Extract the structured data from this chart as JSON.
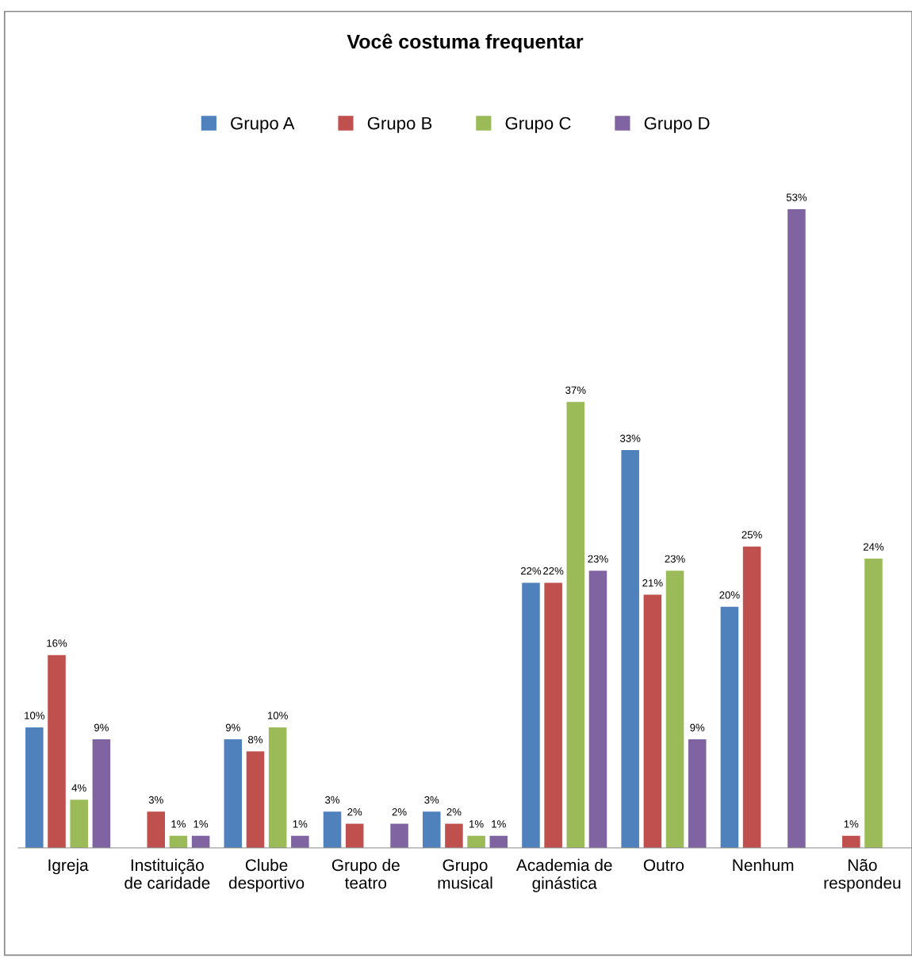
{
  "chart_data": {
    "type": "bar",
    "title": "Você costuma frequentar",
    "categories": [
      "Igreja",
      "Instituição de caridade",
      "Clube desportivo",
      "Grupo de teatro",
      "Grupo musical",
      "Academia de ginástica",
      "Outro",
      "Nenhum",
      "Não respondeu"
    ],
    "series": [
      {
        "name": "Grupo A",
        "color": "#4f81bd",
        "values": [
          10,
          null,
          9,
          3,
          3,
          22,
          33,
          20,
          null
        ],
        "value_labels": [
          "10%",
          null,
          "9%",
          "3%",
          "3%",
          "22%",
          "33%",
          "20%",
          null
        ]
      },
      {
        "name": "Grupo B",
        "color": "#c0504d",
        "values": [
          16,
          3,
          8,
          2,
          2,
          22,
          21,
          25,
          1
        ],
        "value_labels": [
          "16%",
          "3%",
          "8%",
          "2%",
          "2%",
          "22%",
          "21%",
          "25%",
          "1%"
        ]
      },
      {
        "name": "Grupo C",
        "color": "#9bbb59",
        "values": [
          4,
          1,
          10,
          null,
          1,
          37,
          23,
          null,
          24
        ],
        "value_labels": [
          "4%",
          "1%",
          "10%",
          null,
          "1%",
          "37%",
          "23%",
          null,
          "24%"
        ]
      },
      {
        "name": "Grupo D",
        "color": "#8064a2",
        "values": [
          9,
          1,
          1,
          2,
          1,
          23,
          9,
          53,
          null
        ],
        "value_labels": [
          "9%",
          "1%",
          "1%",
          "2%",
          "1%",
          "23%",
          "9%",
          "53%",
          null
        ]
      }
    ],
    "legend": "top",
    "grid": false
  }
}
